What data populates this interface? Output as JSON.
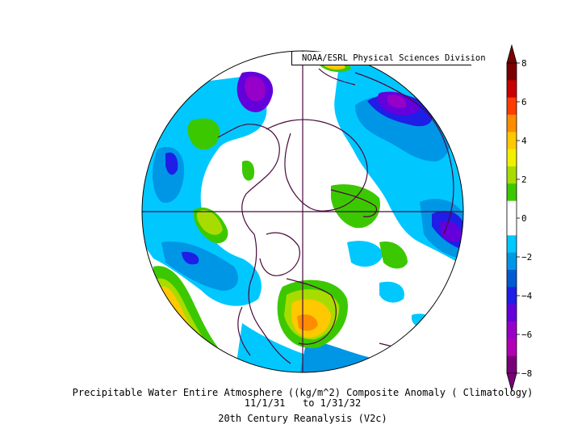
{
  "credit": "NOAA/ESRL Physical Sciences Division",
  "title": "Precipitable Water Entire Atmosphere ((kg/m^2) Composite Anomaly ( Climatology)",
  "period": "11/1/31   to 1/31/32",
  "dataset": "20th Century Reanalysis (V2c)",
  "colorbar": {
    "ticks": [
      "8",
      "6",
      "4",
      "2",
      "0",
      "−2",
      "−4",
      "−6",
      "−8"
    ],
    "colors": [
      "#7a0000",
      "#c80000",
      "#ff3c00",
      "#ff8c00",
      "#ffc800",
      "#f0f000",
      "#a8dc00",
      "#3cc800",
      "#ffffff",
      "#ffffff",
      "#00c8ff",
      "#0096e6",
      "#005ad2",
      "#1e1ee6",
      "#6400dc",
      "#9600c8",
      "#b400b4",
      "#780078"
    ]
  }
}
